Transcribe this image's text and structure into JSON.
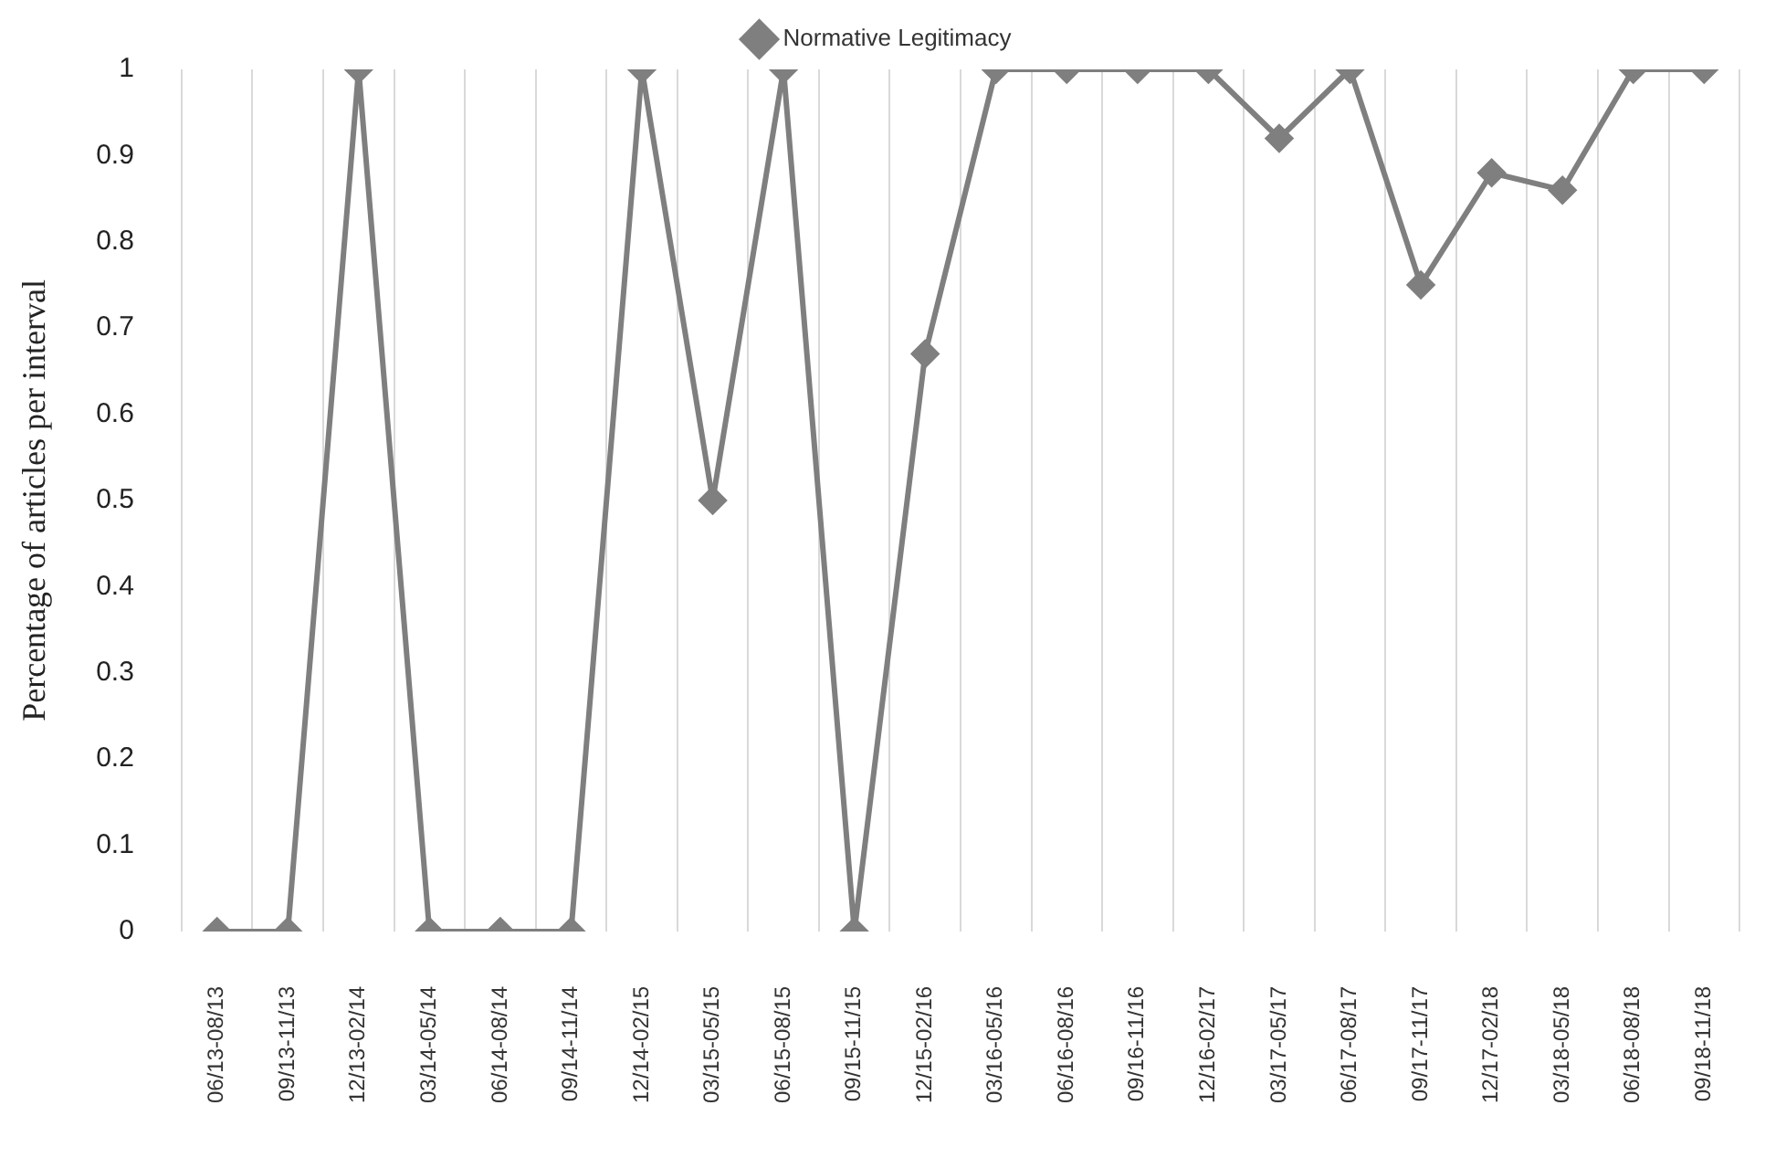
{
  "chart_data": {
    "type": "line",
    "ylabel": "Percentage of articles per interval",
    "categories": [
      "06/13-08/13",
      "09/13-11/13",
      "12/13-02/14",
      "03/14-05/14",
      "06/14-08/14",
      "09/14-11/14",
      "12/14-02/15",
      "03/15-05/15",
      "06/15-08/15",
      "09/15-11/15",
      "12/15-02/16",
      "03/16-05/16",
      "06/16-08/16",
      "09/16-11/16",
      "12/16-02/17",
      "03/17-05/17",
      "06/17-08/17",
      "09/17-11/17",
      "12/17-02/18",
      "03/18-05/18",
      "06/18-08/18",
      "09/18-11/18"
    ],
    "series": [
      {
        "name": "Normative Legitimacy",
        "color": "#7f7f7f",
        "values": [
          0,
          0,
          1,
          0,
          0,
          0,
          1,
          0.5,
          1,
          0,
          0.67,
          1,
          1,
          1,
          1,
          0.92,
          1,
          0.75,
          0.88,
          0.86,
          1,
          1
        ]
      }
    ],
    "ylim": [
      0,
      1
    ],
    "yticks": [
      0,
      0.1,
      0.2,
      0.3,
      0.4,
      0.5,
      0.6,
      0.7,
      0.8,
      0.9,
      1
    ],
    "grid": "x",
    "legend": "top",
    "marker": "diamond",
    "line_style": "solid"
  }
}
